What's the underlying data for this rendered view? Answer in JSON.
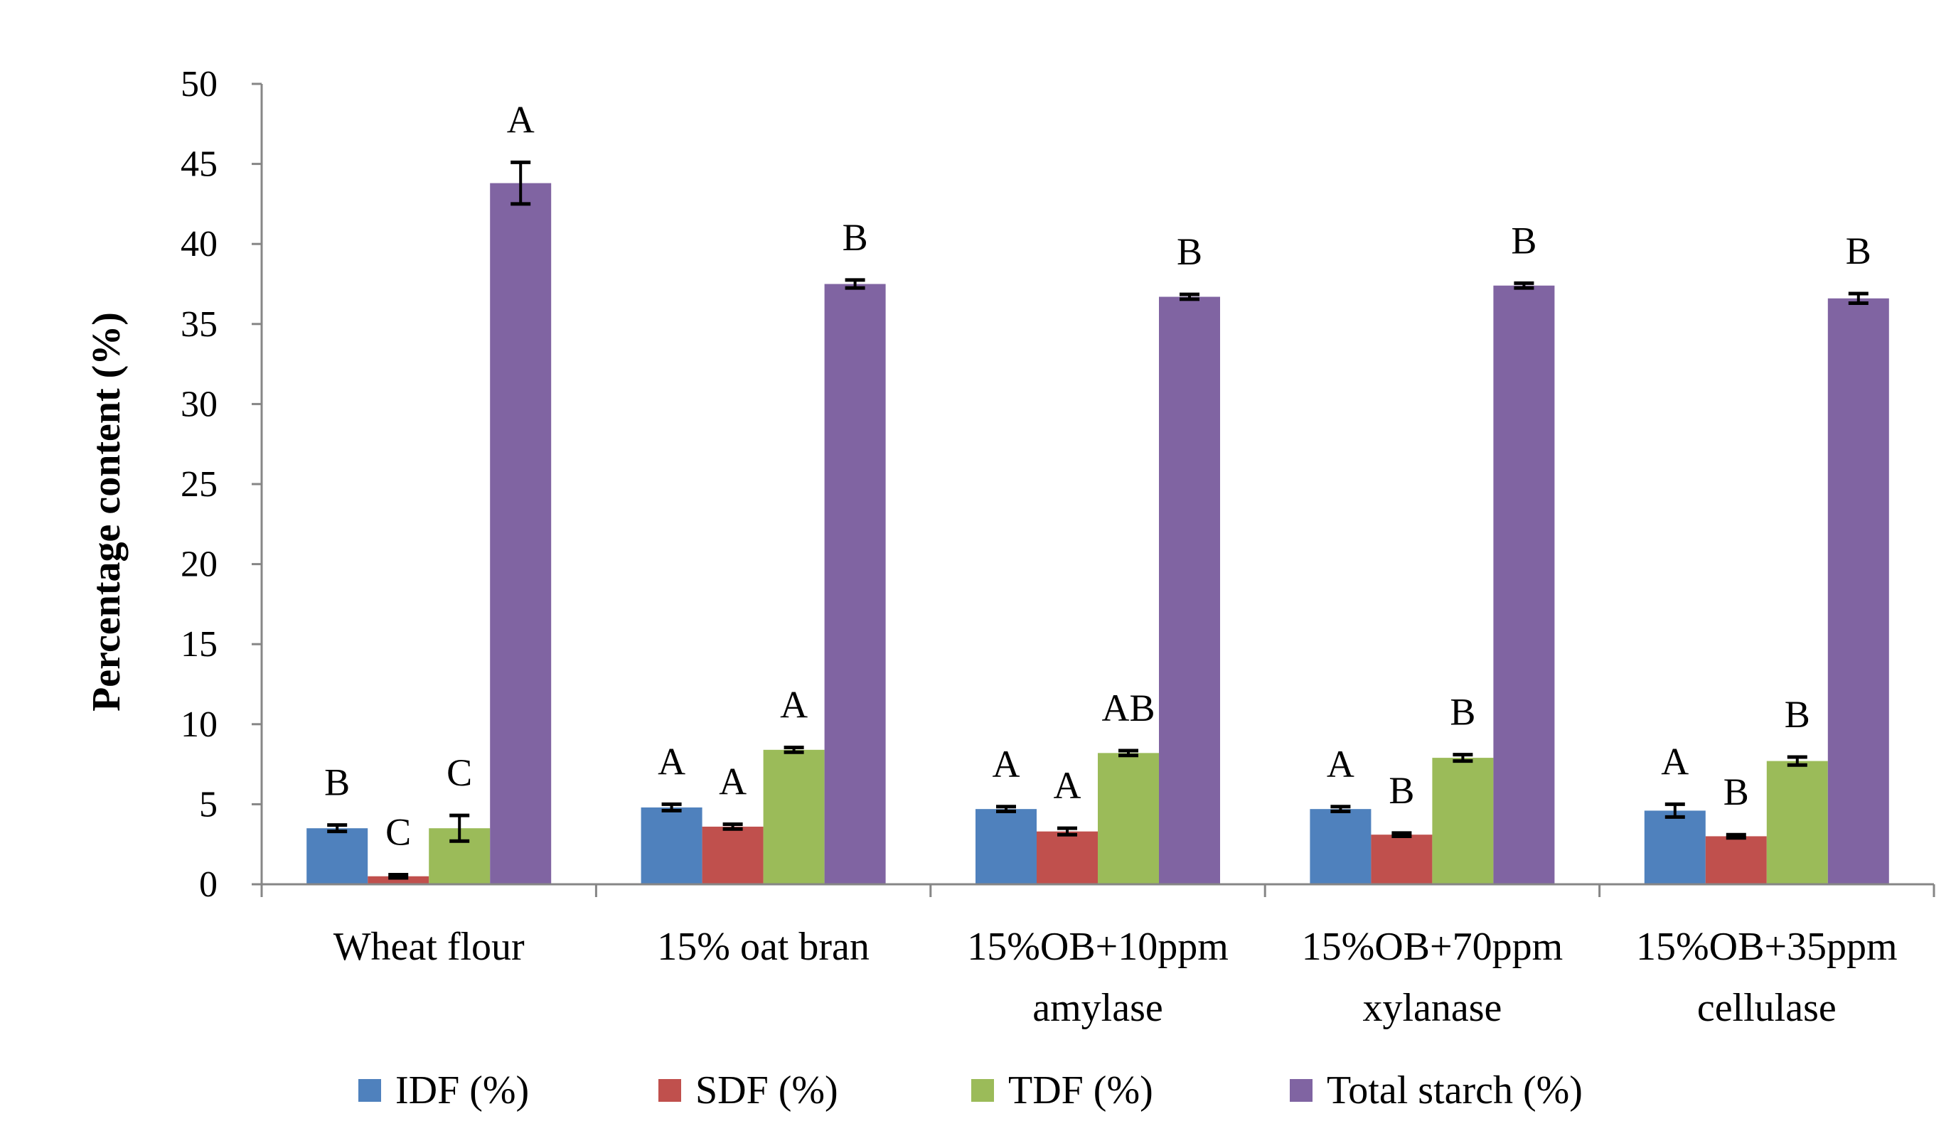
{
  "chart_data": {
    "type": "bar",
    "title": "",
    "xlabel": "",
    "ylabel": "Percentage content (%)",
    "ylim": [
      0,
      50
    ],
    "yticks": [
      0,
      5,
      10,
      15,
      20,
      25,
      30,
      35,
      40,
      45,
      50
    ],
    "legend_position": "bottom",
    "categories": [
      [
        "Wheat flour"
      ],
      [
        "15% oat bran"
      ],
      [
        "15%OB+10ppm",
        "amylase"
      ],
      [
        "15%OB+70ppm",
        "xylanase"
      ],
      [
        "15%OB+35ppm",
        "cellulase"
      ]
    ],
    "series": [
      {
        "name": "IDF (%)",
        "color": "#4F81BD",
        "values": [
          3.5,
          4.8,
          4.7,
          4.7,
          4.6
        ],
        "errors": [
          0.2,
          0.2,
          0.15,
          0.15,
          0.4
        ],
        "letters": [
          "B",
          "A",
          "A",
          "A",
          "A"
        ]
      },
      {
        "name": "SDF (%)",
        "color": "#C0504D",
        "values": [
          0.5,
          3.6,
          3.3,
          3.1,
          3.0
        ],
        "errors": [
          0.1,
          0.15,
          0.2,
          0.1,
          0.1
        ],
        "letters": [
          "C",
          "A",
          "A",
          "B",
          "B"
        ]
      },
      {
        "name": "TDF (%)",
        "color": "#9BBB59",
        "values": [
          3.5,
          8.4,
          8.2,
          7.9,
          7.7
        ],
        "errors": [
          0.8,
          0.15,
          0.15,
          0.2,
          0.25
        ],
        "letters": [
          "C",
          "A",
          "AB",
          "B",
          "B"
        ]
      },
      {
        "name": "Total starch (%)",
        "color": "#8064A2",
        "values": [
          43.8,
          37.5,
          36.7,
          37.4,
          36.6
        ],
        "errors": [
          1.3,
          0.25,
          0.15,
          0.15,
          0.3
        ],
        "letters": [
          "A",
          "B",
          "B",
          "B",
          "B"
        ]
      }
    ]
  }
}
